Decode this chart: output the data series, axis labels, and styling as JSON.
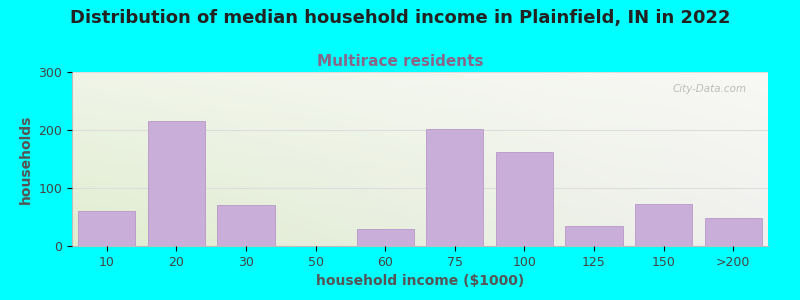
{
  "title": "Distribution of median household income in Plainfield, IN in 2022",
  "subtitle": "Multirace residents",
  "xlabel": "household income ($1000)",
  "ylabel": "households",
  "background_outer": "#00FFFF",
  "bar_color": "#c8aed8",
  "bar_edge_color": "#b898c8",
  "watermark": "City-Data.com",
  "tick_labels": [
    "10",
    "20",
    "30",
    "50",
    "60",
    "75",
    "100",
    "125",
    "150",
    ">200"
  ],
  "bar_heights": [
    60,
    215,
    70,
    0,
    30,
    202,
    162,
    35,
    72,
    48
  ],
  "bar_positions": [
    0,
    1,
    2,
    3,
    4,
    5,
    6,
    7,
    8,
    9
  ],
  "ylim": [
    0,
    300
  ],
  "yticks": [
    0,
    100,
    200,
    300
  ],
  "title_fontsize": 13,
  "subtitle_fontsize": 11,
  "subtitle_color": "#886688",
  "axis_label_fontsize": 10,
  "tick_fontsize": 9,
  "title_color": "#222222",
  "ylabel_color": "#555555",
  "xlabel_color": "#555555",
  "grid_color": "#dddddd",
  "grad_top_left": "#f0f5e8",
  "grad_top_right": "#f8f8f5",
  "grad_bot_left": "#e0edd0",
  "grad_bot_right": "#f0f0ee"
}
